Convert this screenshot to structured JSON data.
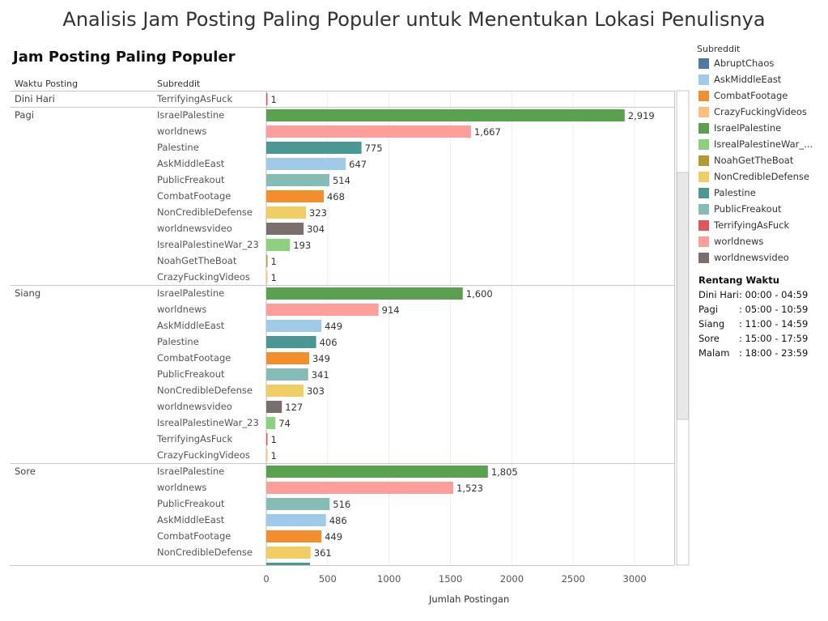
{
  "main_title": "Analisis Jam Posting Paling Populer untuk Menentukan Lokasi Penulisnya",
  "sheet_title": "Jam Posting Paling Populer",
  "column_headers": {
    "period": "Waktu Posting",
    "subreddit": "Subreddit"
  },
  "legend": {
    "title": "Subreddit",
    "items": [
      {
        "label": "AbruptChaos",
        "color": "#4e79a7"
      },
      {
        "label": "AskMiddleEast",
        "color": "#a0cbe8"
      },
      {
        "label": "CombatFootage",
        "color": "#f28e2b"
      },
      {
        "label": "CrazyFuckingVideos",
        "color": "#ffbe7d"
      },
      {
        "label": "IsraelPalestine",
        "color": "#59a14f"
      },
      {
        "label": "IsrealPalestineWar_...",
        "color": "#8cd17d"
      },
      {
        "label": "NoahGetTheBoat",
        "color": "#b6992d"
      },
      {
        "label": "NonCredibleDefense",
        "color": "#f1ce63"
      },
      {
        "label": "Palestine",
        "color": "#499894"
      },
      {
        "label": "PublicFreakout",
        "color": "#86bcb6"
      },
      {
        "label": "TerrifyingAsFuck",
        "color": "#e15759"
      },
      {
        "label": "worldnews",
        "color": "#ff9d9a"
      },
      {
        "label": "worldnewsvideo",
        "color": "#79706e"
      }
    ]
  },
  "time_ranges": {
    "title": "Rentang Waktu",
    "rows": [
      {
        "name": "Dini Hari",
        "range": ": 00:00 - 04:59"
      },
      {
        "name": "Pagi",
        "range": ": 05:00 - 10:59"
      },
      {
        "name": "Siang",
        "range": ": 11:00 - 14:59"
      },
      {
        "name": "Sore",
        "range": ": 15:00 - 17:59"
      },
      {
        "name": "Malam",
        "range": ": 18:00 - 23:59"
      }
    ]
  },
  "chart_data": {
    "type": "bar",
    "orientation": "horizontal",
    "title": "Jam Posting Paling Populer",
    "xlabel": "Jumlah Postingan",
    "ylabel": "Waktu Posting / Subreddit",
    "xlim": [
      0,
      3350
    ],
    "x_ticks": [
      0,
      500,
      1000,
      1500,
      2000,
      2500,
      3000
    ],
    "x_tick_labels": [
      "0",
      "500",
      "1000",
      "1500",
      "2000",
      "2500",
      "3000"
    ],
    "grid": true,
    "groups": [
      {
        "period": "Dini Hari",
        "rows": [
          {
            "subreddit": "TerrifyingAsFuck",
            "value": 1,
            "label": "1"
          }
        ]
      },
      {
        "period": "Pagi",
        "rows": [
          {
            "subreddit": "IsraelPalestine",
            "value": 2919,
            "label": "2,919"
          },
          {
            "subreddit": "worldnews",
            "value": 1667,
            "label": "1,667"
          },
          {
            "subreddit": "Palestine",
            "value": 775,
            "label": "775"
          },
          {
            "subreddit": "AskMiddleEast",
            "value": 647,
            "label": "647"
          },
          {
            "subreddit": "PublicFreakout",
            "value": 514,
            "label": "514"
          },
          {
            "subreddit": "CombatFootage",
            "value": 468,
            "label": "468"
          },
          {
            "subreddit": "NonCredibleDefense",
            "value": 323,
            "label": "323"
          },
          {
            "subreddit": "worldnewsvideo",
            "value": 304,
            "label": "304"
          },
          {
            "subreddit": "IsrealPalestineWar_23",
            "value": 193,
            "label": "193"
          },
          {
            "subreddit": "NoahGetTheBoat",
            "value": 1,
            "label": "1"
          },
          {
            "subreddit": "CrazyFuckingVideos",
            "value": 1,
            "label": "1"
          }
        ]
      },
      {
        "period": "Siang",
        "rows": [
          {
            "subreddit": "IsraelPalestine",
            "value": 1600,
            "label": "1,600"
          },
          {
            "subreddit": "worldnews",
            "value": 914,
            "label": "914"
          },
          {
            "subreddit": "AskMiddleEast",
            "value": 449,
            "label": "449"
          },
          {
            "subreddit": "Palestine",
            "value": 406,
            "label": "406"
          },
          {
            "subreddit": "CombatFootage",
            "value": 349,
            "label": "349"
          },
          {
            "subreddit": "PublicFreakout",
            "value": 341,
            "label": "341"
          },
          {
            "subreddit": "NonCredibleDefense",
            "value": 303,
            "label": "303"
          },
          {
            "subreddit": "worldnewsvideo",
            "value": 127,
            "label": "127"
          },
          {
            "subreddit": "IsrealPalestineWar_23",
            "value": 74,
            "label": "74"
          },
          {
            "subreddit": "TerrifyingAsFuck",
            "value": 1,
            "label": "1"
          },
          {
            "subreddit": "CrazyFuckingVideos",
            "value": 1,
            "label": "1"
          }
        ]
      },
      {
        "period": "Sore",
        "rows": [
          {
            "subreddit": "IsraelPalestine",
            "value": 1805,
            "label": "1,805"
          },
          {
            "subreddit": "worldnews",
            "value": 1523,
            "label": "1,523"
          },
          {
            "subreddit": "PublicFreakout",
            "value": 516,
            "label": "516"
          },
          {
            "subreddit": "AskMiddleEast",
            "value": 486,
            "label": "486"
          },
          {
            "subreddit": "CombatFootage",
            "value": 449,
            "label": "449"
          },
          {
            "subreddit": "NonCredibleDefense",
            "value": 361,
            "label": "361"
          }
        ]
      }
    ]
  }
}
